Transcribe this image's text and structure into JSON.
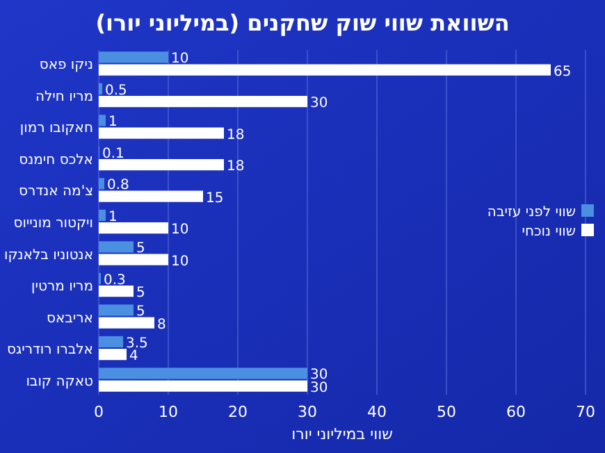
{
  "chart_data": {
    "type": "bar",
    "orientation": "horizontal",
    "title": "השוואת שווי שוק שחקנים (במיליוני יורו)",
    "xlabel": "שווי במיליוני יורו",
    "categories": [
      "ניקו פאס",
      "מריו חילה",
      "חאקובו רמון",
      "אלכס חימנס",
      "צ'מה אנדרס",
      "ויקטור מונייוס",
      "אנטוניו בלאנקו",
      "מריו מרטין",
      "אריבאס",
      "אלברו רודריגס",
      "טאקה קובו"
    ],
    "series": [
      {
        "name": "שווי לפני עזיבה",
        "color": "#4a8fe0",
        "values": [
          10,
          0.5,
          1,
          0.1,
          0.8,
          1,
          5,
          0.3,
          5,
          3.5,
          30
        ]
      },
      {
        "name": "שווי נוכחי",
        "color": "#ffffff",
        "values": [
          65,
          30,
          18,
          18,
          15,
          10,
          10,
          5,
          8,
          4,
          30
        ]
      }
    ],
    "xlim": [
      0,
      70
    ],
    "xticks": [
      0,
      10,
      20,
      30,
      40,
      50,
      60,
      70
    ],
    "grid": "x",
    "legend": "right",
    "data_labels": true
  }
}
